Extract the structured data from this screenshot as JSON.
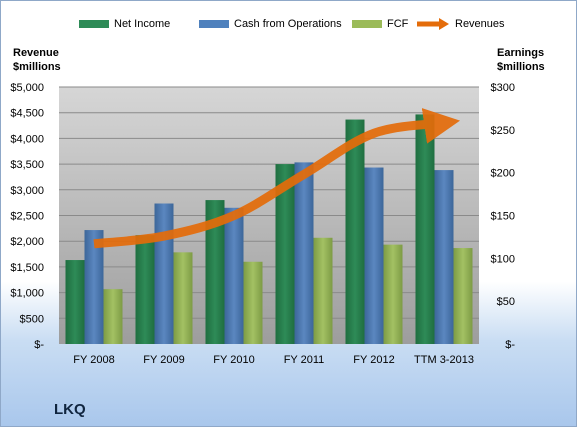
{
  "company": "LKQ",
  "chart_data": {
    "type": "bar",
    "categories": [
      "FY 2008",
      "FY 2009",
      "FY 2010",
      "FY 2011",
      "FY 2012",
      "TTM 3-2013"
    ],
    "series": [
      {
        "name": "Net Income",
        "axis": "right",
        "color": "#2e8b57",
        "values": [
          98,
          127,
          168,
          210,
          262,
          268
        ]
      },
      {
        "name": "Cash from Operations",
        "axis": "right",
        "color": "#4f81bd",
        "values": [
          133,
          164,
          159,
          212,
          206,
          203
        ]
      },
      {
        "name": "FCF",
        "axis": "right",
        "color": "#9bbb59",
        "values": [
          64,
          107,
          96,
          124,
          116,
          112
        ]
      },
      {
        "name": "Revenues",
        "axis": "left",
        "type": "line",
        "color": "#e46c0a",
        "values": [
          1950,
          2100,
          2500,
          3300,
          4100,
          4300
        ]
      }
    ],
    "y_left": {
      "label": "Revenue\n$millions",
      "ylim": [
        0,
        5000
      ],
      "ticks": [
        "$-",
        "$500",
        "$1,000",
        "$1,500",
        "$2,000",
        "$2,500",
        "$3,000",
        "$3,500",
        "$4,000",
        "$4,500",
        "$5,000"
      ]
    },
    "y_right": {
      "label": "Earnings\n$millions",
      "ylim": [
        0,
        300
      ],
      "ticks": [
        "$-",
        "$50",
        "$100",
        "$150",
        "$200",
        "$250",
        "$300"
      ]
    },
    "legend": "top",
    "grid": true
  },
  "colors": {
    "plot_top": "#d6d6d6",
    "plot_bottom": "#9d9d9d"
  }
}
